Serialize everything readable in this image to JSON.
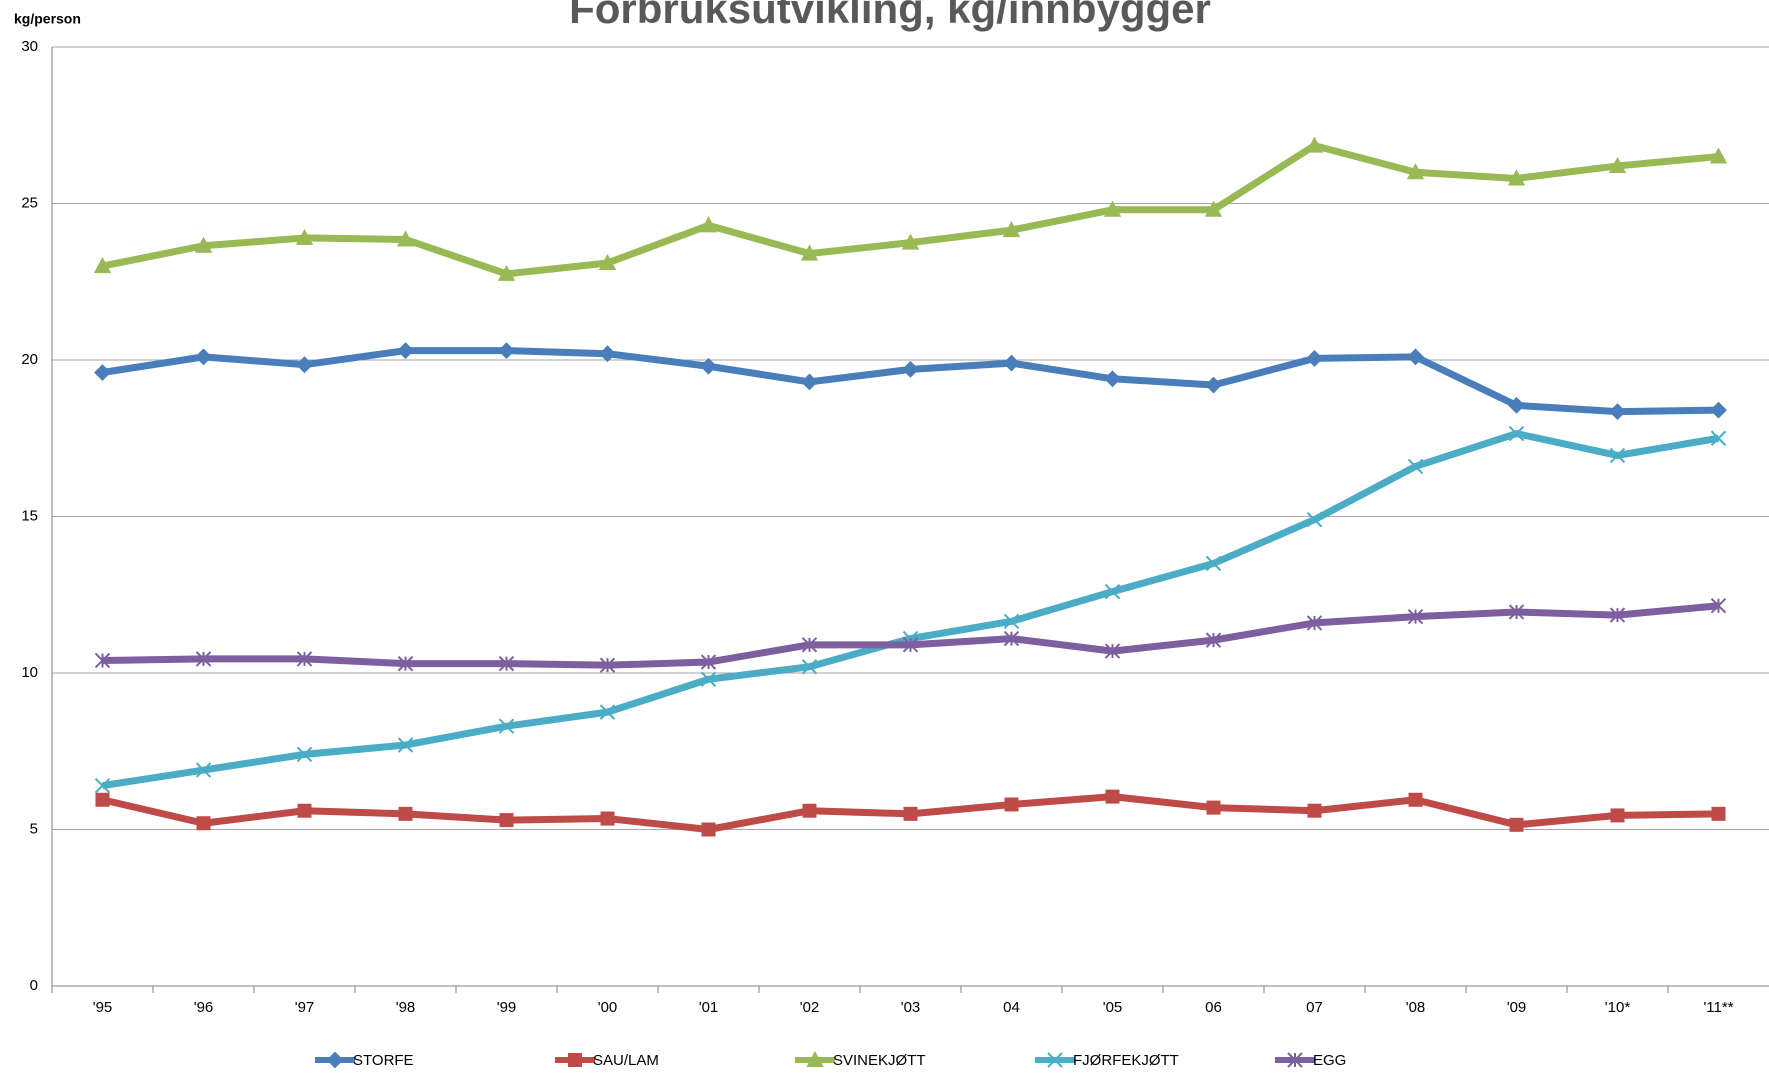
{
  "chart_data": {
    "type": "line",
    "title": "Forbruksutvikling, kg/innbygger",
    "y_label": "kg/person",
    "categories": [
      "'95",
      "'96",
      "'97",
      "'98",
      "'99",
      "'00",
      "'01",
      "'02",
      "'03",
      "04",
      "'05",
      "06",
      "07",
      "'08",
      "'09",
      "'10*",
      "'11**"
    ],
    "series": [
      {
        "name": "STORFE",
        "color": "#4a7ebb",
        "values": [
          19.6,
          20.1,
          19.85,
          20.3,
          20.3,
          20.2,
          19.8,
          19.3,
          19.7,
          19.9,
          19.4,
          19.2,
          20.05,
          20.1,
          18.55,
          18.35,
          18.4
        ]
      },
      {
        "name": "SAU/LAM",
        "color": "#be4b48",
        "values": [
          5.95,
          5.2,
          5.6,
          5.5,
          5.3,
          5.35,
          5.0,
          5.6,
          5.5,
          5.8,
          6.05,
          5.7,
          5.6,
          5.95,
          5.15,
          5.45,
          5.5
        ]
      },
      {
        "name": "SVINEKJØTT",
        "color": "#98b954",
        "values": [
          23.0,
          23.65,
          23.9,
          23.85,
          22.75,
          23.1,
          24.3,
          23.4,
          23.75,
          24.15,
          24.8,
          24.8,
          26.85,
          26.0,
          25.8,
          26.2,
          26.5
        ]
      },
      {
        "name": "FJØRFEKJØTT",
        "color": "#4bacc6",
        "values": [
          6.4,
          6.9,
          7.4,
          7.7,
          8.3,
          8.75,
          9.8,
          10.2,
          11.1,
          11.65,
          12.6,
          13.5,
          14.9,
          16.6,
          17.65,
          16.95,
          17.5
        ]
      },
      {
        "name": "EGG",
        "color": "#7d5fa0",
        "values": [
          10.4,
          10.45,
          10.45,
          10.3,
          10.3,
          10.25,
          10.35,
          10.9,
          10.9,
          11.1,
          10.7,
          11.05,
          11.6,
          11.8,
          11.95,
          11.85,
          12.15
        ]
      }
    ],
    "ylim": [
      0,
      30
    ],
    "yticks": [
      0,
      5,
      10,
      15,
      20,
      25,
      30
    ],
    "grid": true,
    "legend": "bottom"
  }
}
